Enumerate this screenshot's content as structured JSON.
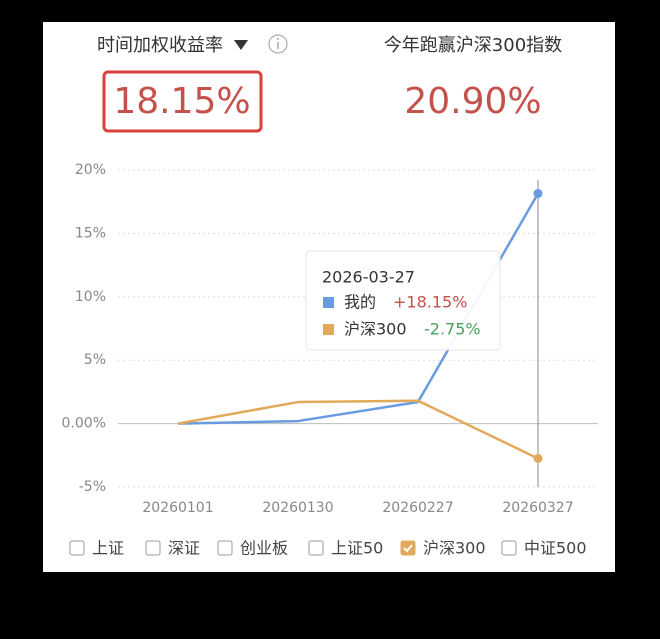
{
  "header": {
    "metric_label": "时间加权收益率",
    "metric_value": "18.15%",
    "compare_label": "今年跑赢沪深300指数",
    "compare_value": "20.90%"
  },
  "chart_data": {
    "type": "line",
    "categories": [
      "20260101",
      "20260130",
      "20260227",
      "20260327"
    ],
    "series": [
      {
        "name": "我的",
        "color": "#6a9be0",
        "values": [
          0,
          0.2,
          1.7,
          18.15
        ],
        "value_labels": [
          null,
          null,
          null,
          "+18.15%"
        ]
      },
      {
        "name": "沪深300",
        "color": "#e0aa5a",
        "values": [
          0,
          1.7,
          1.8,
          -2.75
        ],
        "value_labels": [
          null,
          null,
          null,
          "-2.75%"
        ]
      }
    ],
    "ylim": [
      -5,
      20
    ],
    "yticks": [
      {
        "value": -5,
        "label": "-5%"
      },
      {
        "value": 0,
        "label": "0.00%"
      },
      {
        "value": 5,
        "label": "5%"
      },
      {
        "value": 10,
        "label": "10%"
      },
      {
        "value": 15,
        "label": "15%"
      },
      {
        "value": 20,
        "label": "20%"
      }
    ],
    "grid": true,
    "tooltip": {
      "date": "2026-03-27"
    }
  },
  "index_options": [
    {
      "label": "上证",
      "checked": false
    },
    {
      "label": "深证",
      "checked": false
    },
    {
      "label": "创业板",
      "checked": false
    },
    {
      "label": "上证50",
      "checked": false
    },
    {
      "label": "沪深300",
      "checked": true
    },
    {
      "label": "中证500",
      "checked": false
    }
  ]
}
